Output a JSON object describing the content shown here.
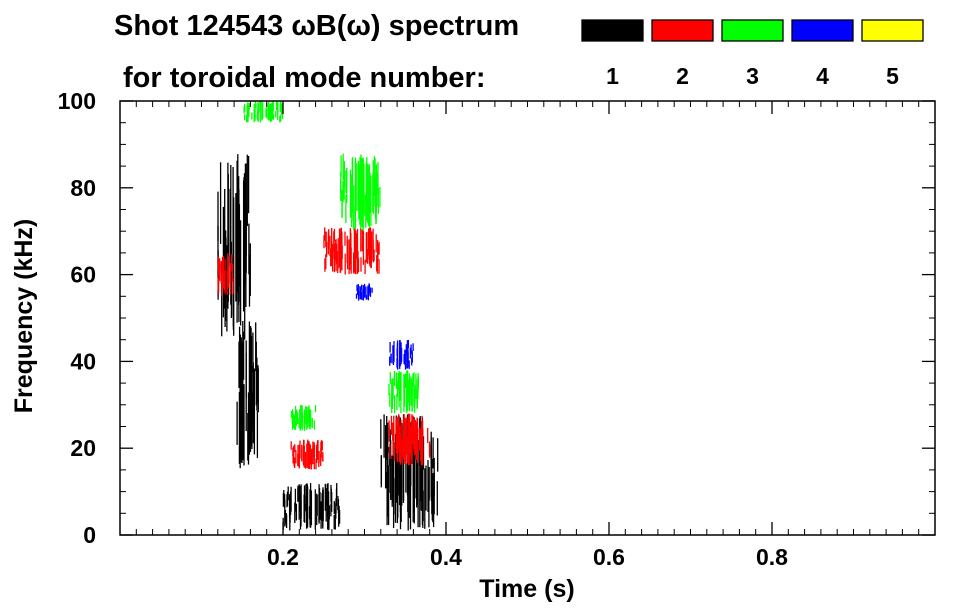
{
  "chart_data": {
    "type": "heatmap",
    "title_line1": "Shot 124543 ωB(ω) spectrum",
    "title_line2": "for toroidal mode number:",
    "xlabel": "Time (s)",
    "ylabel": "Frequency (kHz)",
    "xlim": [
      0.0,
      1.0
    ],
    "ylim": [
      0,
      100
    ],
    "x_ticks": [
      0.2,
      0.4,
      0.6,
      0.8
    ],
    "x_tick_labels": [
      "0.2",
      "0.4",
      "0.6",
      "0.8"
    ],
    "y_ticks": [
      0,
      20,
      40,
      60,
      80,
      100
    ],
    "y_tick_labels": [
      "0",
      "20",
      "40",
      "60",
      "80",
      "100"
    ],
    "legend_placement": "top, right of title",
    "legend": [
      {
        "label": "1",
        "color": "#000000"
      },
      {
        "label": "2",
        "color": "#ff0000"
      },
      {
        "label": "3",
        "color": "#00ff00"
      },
      {
        "label": "4",
        "color": "#0000ff"
      },
      {
        "label": "5",
        "color": "#ffff00"
      }
    ],
    "mode_regions": [
      {
        "mode": "1",
        "color": "#000000",
        "t": [
          0.12,
          0.16
        ],
        "f": [
          45,
          88
        ]
      },
      {
        "mode": "1",
        "color": "#000000",
        "t": [
          0.14,
          0.17
        ],
        "f": [
          15,
          50
        ]
      },
      {
        "mode": "1",
        "color": "#000000",
        "t": [
          0.2,
          0.27
        ],
        "f": [
          1,
          12
        ]
      },
      {
        "mode": "1",
        "color": "#000000",
        "t": [
          0.32,
          0.39
        ],
        "f": [
          1,
          28
        ]
      },
      {
        "mode": "2",
        "color": "#ff0000",
        "t": [
          0.12,
          0.14
        ],
        "f": [
          55,
          65
        ]
      },
      {
        "mode": "2",
        "color": "#ff0000",
        "t": [
          0.21,
          0.25
        ],
        "f": [
          15,
          22
        ]
      },
      {
        "mode": "2",
        "color": "#ff0000",
        "t": [
          0.25,
          0.32
        ],
        "f": [
          60,
          71
        ]
      },
      {
        "mode": "2",
        "color": "#ff0000",
        "t": [
          0.33,
          0.38
        ],
        "f": [
          16,
          28
        ]
      },
      {
        "mode": "3",
        "color": "#00ff00",
        "t": [
          0.15,
          0.2
        ],
        "f": [
          95,
          100
        ]
      },
      {
        "mode": "3",
        "color": "#00ff00",
        "t": [
          0.27,
          0.32
        ],
        "f": [
          70,
          88
        ]
      },
      {
        "mode": "3",
        "color": "#00ff00",
        "t": [
          0.33,
          0.37
        ],
        "f": [
          28,
          38
        ]
      },
      {
        "mode": "3",
        "color": "#00ff00",
        "t": [
          0.21,
          0.24
        ],
        "f": [
          24,
          30
        ]
      },
      {
        "mode": "4",
        "color": "#0000ff",
        "t": [
          0.33,
          0.36
        ],
        "f": [
          38,
          45
        ]
      },
      {
        "mode": "4",
        "color": "#0000ff",
        "t": [
          0.29,
          0.31
        ],
        "f": [
          54,
          58
        ]
      }
    ]
  }
}
